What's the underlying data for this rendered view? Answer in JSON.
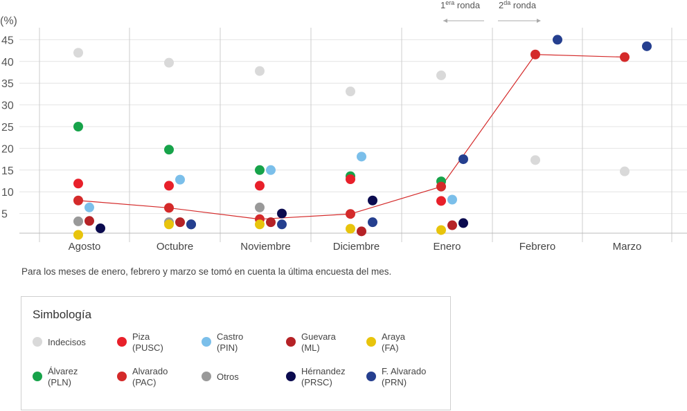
{
  "chart_data": {
    "type": "scatter",
    "title": "",
    "ylabel": "(%)",
    "xlabel": "",
    "ylim": [
      0,
      47
    ],
    "yticks": [
      5,
      10,
      15,
      20,
      25,
      30,
      35,
      40,
      45
    ],
    "categories": [
      "Agosto",
      "Octubre",
      "Noviembre",
      "Diciembre",
      "Enero",
      "Febrero",
      "Marzo"
    ],
    "round_labels": {
      "first": "1",
      "first_sup": "era",
      "first_suffix": " ronda",
      "second": "2",
      "second_sup": "da",
      "second_suffix": " ronda"
    },
    "trend_series": "Alvarado",
    "series": [
      {
        "key": "indecisos",
        "name": "Indecisos",
        "color": "#d9d9d9",
        "offset": 0,
        "values": [
          42,
          39.7,
          37.8,
          33.1,
          36.8,
          17.3,
          14.7
        ]
      },
      {
        "key": "alvarez",
        "name": "Álvarez (PLN)",
        "color": "#17a34a",
        "offset": 0,
        "values": [
          25,
          19.7,
          15,
          13.6,
          12.4,
          null,
          null
        ]
      },
      {
        "key": "piza",
        "name": "Piza (PUSC)",
        "color": "#e8202a",
        "offset": 0,
        "values": [
          11.9,
          11.4,
          11.4,
          12.9,
          7.9,
          null,
          null
        ]
      },
      {
        "key": "alvarado",
        "name": "Alvarado (PAC)",
        "color": "#d42a2a",
        "offset": 0,
        "values": [
          8,
          6.3,
          3.7,
          4.9,
          11.2,
          41.6,
          41
        ]
      },
      {
        "key": "castro",
        "name": "Castro (PIN)",
        "color": "#7bbfea",
        "offset": 1,
        "values": [
          6.4,
          12.8,
          15,
          18.1,
          8.2,
          null,
          null
        ]
      },
      {
        "key": "otros",
        "name": "Otros",
        "color": "#999999",
        "offset": 0,
        "values": [
          3.2,
          3,
          6.4,
          null,
          null,
          null,
          null
        ]
      },
      {
        "key": "guevara",
        "name": "Guevara (ML)",
        "color": "#b52226",
        "offset": 1,
        "values": [
          3.3,
          3,
          3,
          0.9,
          2.3,
          null,
          null
        ]
      },
      {
        "key": "araya",
        "name": "Araya (FA)",
        "color": "#e8c40c",
        "offset": 0,
        "values": [
          0.1,
          2.5,
          2.5,
          1.5,
          1.2,
          null,
          null
        ]
      },
      {
        "key": "hernandez",
        "name": "Hérnandez (PRSC)",
        "color": "#0b0b4f",
        "offset": 2,
        "values": [
          1.6,
          2.5,
          5,
          8,
          2.8,
          null,
          null
        ]
      },
      {
        "key": "falvarado",
        "name": "F. Alvarado (PRN)",
        "color": "#253f8f",
        "offset": 2,
        "values": [
          null,
          2.5,
          2.5,
          3,
          17.5,
          45,
          43.5
        ]
      }
    ]
  },
  "note": "Para los meses de enero, febrero y marzo se tomó en cuenta la última encuesta del mes.",
  "legend": {
    "title": "Simbología",
    "items": [
      {
        "label": "Indecisos",
        "color": "#d9d9d9"
      },
      {
        "label": "Piza\n(PUSC)",
        "color": "#e8202a"
      },
      {
        "label": "Castro\n(PIN)",
        "color": "#7bbfea"
      },
      {
        "label": "Guevara\n(ML)",
        "color": "#b52226"
      },
      {
        "label": "Araya\n(FA)",
        "color": "#e8c40c"
      },
      {
        "label": "Álvarez\n(PLN)",
        "color": "#17a34a"
      },
      {
        "label": "Alvarado\n(PAC)",
        "color": "#d42a2a"
      },
      {
        "label": "Otros",
        "color": "#999999"
      },
      {
        "label": "Hérnandez\n(PRSC)",
        "color": "#0b0b4f"
      },
      {
        "label": "F. Alvarado\n(PRN)",
        "color": "#253f8f"
      }
    ]
  }
}
